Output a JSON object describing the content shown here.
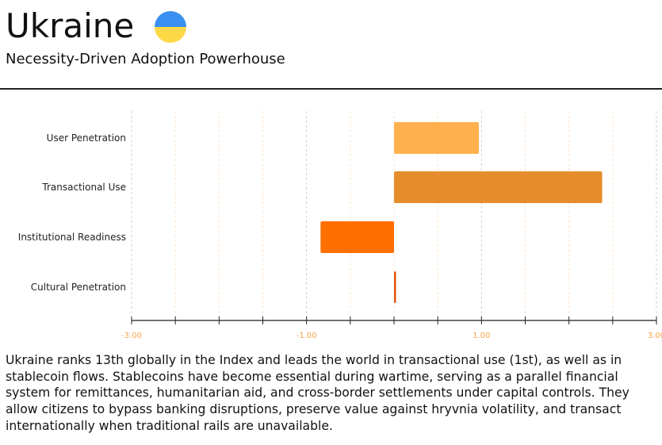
{
  "header": {
    "title": "Ukraine",
    "flag_icon": "ukraine-flag",
    "subtitle": "Necessity-Driven Adoption Powerhouse"
  },
  "chart_data": {
    "type": "bar",
    "orientation": "horizontal",
    "categories": [
      "User Penetration",
      "Transactional Use",
      "Institutional Readiness",
      "Cultural Penetration"
    ],
    "values": [
      0.97,
      2.38,
      -0.84,
      0.02
    ],
    "colors": [
      "#ffb04e",
      "#e68d2b",
      "#ff6f00",
      "#e0560a"
    ],
    "xlim": [
      -3,
      3
    ],
    "xticks": [
      -3,
      -1,
      1,
      3
    ],
    "xtick_labels": [
      "-3.00",
      "-1.00",
      "1.00",
      "3.00"
    ],
    "minor_step": 0.5,
    "grid": true,
    "title": "",
    "xlabel": "",
    "ylabel": ""
  },
  "description": "Ukraine ranks 13th globally in the Index and leads the world in transactional use (1st), as well as in stablecoin flows. Stablecoins have become essential during wartime, serving as a parallel financial system for remittances, humanitarian aid, and cross-border settlements under capital controls. They allow citizens to bypass banking disruptions, preserve value against hryvnia volatility, and transact internationally when traditional rails are unavailable."
}
